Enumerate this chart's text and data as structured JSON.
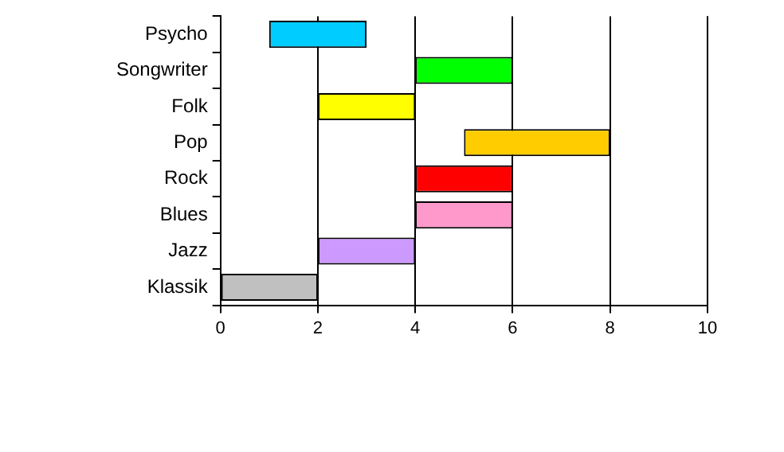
{
  "chart_data": {
    "type": "bar",
    "orientation": "horizontal",
    "categories": [
      "Psycho",
      "Songwriter",
      "Folk",
      "Pop",
      "Rock",
      "Blues",
      "Jazz",
      "Klassik"
    ],
    "base": [
      1,
      4,
      2,
      5,
      4,
      4,
      2,
      0
    ],
    "values": [
      2,
      2,
      2,
      3,
      2,
      2,
      2,
      2
    ],
    "colors": [
      "#00ccff",
      "#00ff00",
      "#ffff00",
      "#ffcc00",
      "#ff0000",
      "#ff99cc",
      "#cc99ff",
      "#c0c0c0"
    ],
    "xlim": [
      0,
      10
    ],
    "xticks": [
      0,
      2,
      4,
      6,
      8,
      10
    ],
    "grid": "x",
    "legend": false
  }
}
